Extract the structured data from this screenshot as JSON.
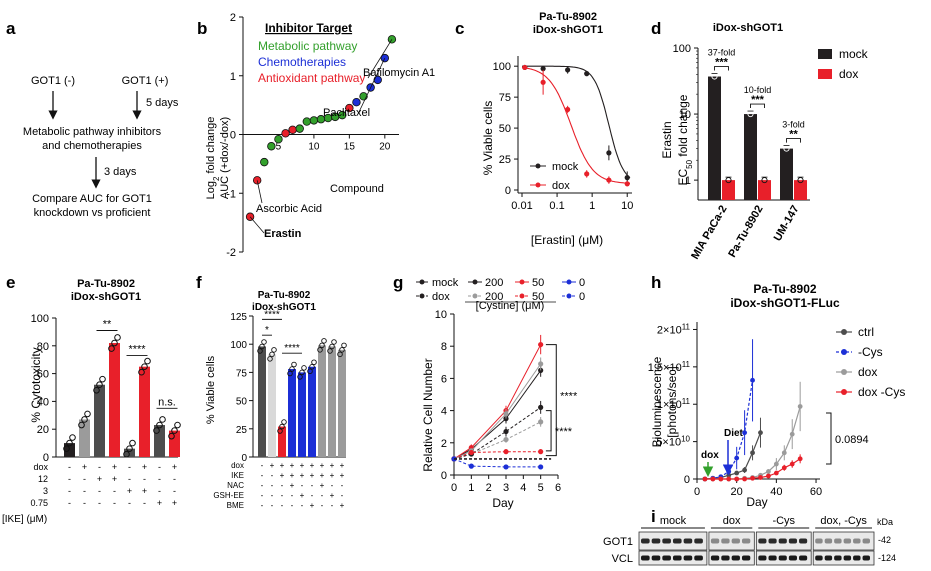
{
  "panel_letters": {
    "a": "a",
    "b": "b",
    "c": "c",
    "d": "d",
    "e": "e",
    "f": "f",
    "g": "g",
    "h": "h",
    "i": "i"
  },
  "colors": {
    "black": "#231f20",
    "grey": "#9b9b9b",
    "red": "#e8202a",
    "blue": "#1c2fd6",
    "green": "#33a02c",
    "darkgrey": "#4d4d4d"
  },
  "panel_a": {
    "got1_minus": "GOT1 (-)",
    "got1_plus": "GOT1 (+)",
    "days5": "5 days",
    "line1": "Metabolic pathway inhibitors",
    "line2": "and chemotherapies",
    "days3": "3 days",
    "line3": "Compare AUC for GOT1",
    "line4": "knockdown vs proficient"
  },
  "chart_data": [
    {
      "panel": "b",
      "type": "scatter",
      "legend_title": "Inhibitor Target",
      "legend": [
        {
          "name": "Metabolic pathway",
          "color": "#33a02c"
        },
        {
          "name": "Chemotherapies",
          "color": "#1c2fd6"
        },
        {
          "name": "Antioxidant pathway",
          "color": "#e8202a"
        }
      ],
      "ylabel_line1": "Log",
      "ylabel_sub": "2",
      "ylabel_rest": " fold change",
      "ylabel_line2": "AUC (+dox/-dox)",
      "xlabel": "Compound",
      "xticks": [
        "5",
        "10",
        "15",
        "20"
      ],
      "yticks": [
        "-2",
        "-1",
        "0",
        "1",
        "2"
      ],
      "xlim": [
        0,
        22
      ],
      "ylim": [
        -2,
        2
      ],
      "points": [
        {
          "x": 1,
          "y": -1.4,
          "c": "red"
        },
        {
          "x": 2,
          "y": -0.78,
          "c": "red"
        },
        {
          "x": 3,
          "y": -0.47,
          "c": "green"
        },
        {
          "x": 4,
          "y": -0.2,
          "c": "green"
        },
        {
          "x": 5,
          "y": -0.08,
          "c": "green"
        },
        {
          "x": 6,
          "y": 0.02,
          "c": "red"
        },
        {
          "x": 7,
          "y": 0.08,
          "c": "red"
        },
        {
          "x": 8,
          "y": 0.1,
          "c": "green"
        },
        {
          "x": 9,
          "y": 0.22,
          "c": "green"
        },
        {
          "x": 10,
          "y": 0.24,
          "c": "green"
        },
        {
          "x": 11,
          "y": 0.26,
          "c": "green"
        },
        {
          "x": 12,
          "y": 0.28,
          "c": "green"
        },
        {
          "x": 13,
          "y": 0.3,
          "c": "green"
        },
        {
          "x": 14,
          "y": 0.33,
          "c": "green"
        },
        {
          "x": 15,
          "y": 0.45,
          "c": "red"
        },
        {
          "x": 16,
          "y": 0.55,
          "c": "blue"
        },
        {
          "x": 17,
          "y": 0.65,
          "c": "green"
        },
        {
          "x": 18,
          "y": 0.8,
          "c": "blue"
        },
        {
          "x": 19,
          "y": 0.93,
          "c": "blue"
        },
        {
          "x": 20,
          "y": 1.3,
          "c": "blue"
        },
        {
          "x": 21,
          "y": 1.62,
          "c": "green"
        }
      ],
      "annotations": {
        "bafilomycin": "Bafilomycin A1",
        "paclitaxel": "Paclitaxel",
        "ascorbic": "Ascorbic Acid",
        "erastin": "Erastin"
      }
    },
    {
      "panel": "c",
      "type": "line",
      "title_line1": "Pa-Tu-8902",
      "title_line2": "iDox-shGOT1",
      "ylabel": "% Viable cells",
      "xlabel": "[Erastin] (μM)",
      "xticks": [
        "0.01",
        "0.1",
        "1",
        "10"
      ],
      "yticks": [
        "0",
        "25",
        "50",
        "75",
        "100"
      ],
      "xlim": [
        0.01,
        12
      ],
      "ylim": [
        0,
        105
      ],
      "series": [
        {
          "name": "mock",
          "color": "#231f20",
          "x": [
            0.012,
            0.04,
            0.2,
            0.7,
            3,
            10
          ],
          "y": [
            99,
            98,
            97,
            94,
            30,
            10
          ],
          "err": [
            2,
            2,
            3,
            2,
            6,
            5
          ],
          "fit": {
            "top": 100,
            "bottom": 5,
            "ec50": 3.0,
            "hill": 2.1
          }
        },
        {
          "name": "dox",
          "color": "#e8202a",
          "x": [
            0.012,
            0.04,
            0.2,
            0.7,
            3,
            10
          ],
          "y": [
            99,
            87,
            65,
            13,
            8,
            5
          ],
          "err": [
            2,
            10,
            3,
            3,
            3,
            2
          ],
          "fit": {
            "top": 100,
            "bottom": 5,
            "ec50": 0.25,
            "hill": 1.4
          }
        }
      ]
    },
    {
      "panel": "d",
      "type": "bar",
      "title": "iDox-shGOT1",
      "ylabel_line1": "Erastin",
      "ylabel_line2_main": "EC",
      "ylabel_line2_sub": "50",
      "ylabel_line2_rest": " fold change",
      "categories": [
        "MIA PaCa-2",
        "Pa-Tu-8902",
        "UM-147"
      ],
      "yticks": [
        "1",
        "10",
        "100"
      ],
      "ylim": [
        0.5,
        100
      ],
      "scale": "log",
      "series": [
        {
          "name": "mock",
          "color": "#231f20",
          "values": [
            37,
            10,
            3
          ]
        },
        {
          "name": "dox",
          "color": "#e8202a",
          "values": [
            1,
            1,
            1
          ]
        }
      ],
      "folds": [
        "37-fold",
        "10-fold",
        "3-fold"
      ],
      "sig": [
        "***",
        "***",
        "**"
      ]
    },
    {
      "panel": "e",
      "type": "bar",
      "title_line1": "Pa-Tu-8902",
      "title_line2": "iDox-shGOT1",
      "ylabel": "% Cytotoxicity",
      "yticks": [
        "0",
        "20",
        "40",
        "60",
        "80",
        "100"
      ],
      "ylim": [
        0,
        100
      ],
      "values": [
        10,
        27,
        52,
        82,
        6,
        65,
        23,
        19
      ],
      "colors": [
        "#231f20",
        "#9b9b9b",
        "#4d4d4d",
        "#e8202a",
        "#4d4d4d",
        "#e8202a",
        "#4d4d4d",
        "#e8202a"
      ],
      "sig": [
        "**",
        "****",
        "n.s."
      ],
      "conditions": {
        "labels": [
          "dox",
          "12",
          "3",
          "0.75"
        ],
        "group_label": "[IKE] (μM)",
        "rows": [
          [
            "-",
            "+",
            "-",
            "+",
            "-",
            "+",
            "-",
            "+"
          ],
          [
            "-",
            "-",
            "+",
            "+",
            "-",
            "-",
            "-",
            "-"
          ],
          [
            "-",
            "-",
            "-",
            "-",
            "+",
            "+",
            "-",
            "-"
          ],
          [
            "-",
            "-",
            "-",
            "-",
            "-",
            "-",
            "+",
            "+"
          ]
        ]
      }
    },
    {
      "panel": "f",
      "type": "bar",
      "title_line1": "Pa-Tu-8902",
      "title_line2": "iDox-shGOT1",
      "ylabel": "% Viable cells",
      "yticks": [
        "0",
        "25",
        "50",
        "75",
        "100",
        "125"
      ],
      "ylim": [
        0,
        125
      ],
      "values": [
        98,
        91,
        27,
        78,
        75,
        80,
        99,
        98,
        95
      ],
      "colors": [
        "#4d4d4d",
        "#d9d9d9",
        "#e8202a",
        "#1c2fd6",
        "#1c2fd6",
        "#1c2fd6",
        "#9b9b9b",
        "#9b9b9b",
        "#9b9b9b"
      ],
      "sig": [
        "*",
        "****",
        "****"
      ],
      "conditions": {
        "labels": [
          "dox",
          "IKE",
          "NAC",
          "GSH-EE",
          "BME"
        ],
        "rows": [
          [
            "-",
            "+",
            "+",
            "+",
            "+",
            "+",
            "+",
            "+",
            "+"
          ],
          [
            "-",
            "-",
            "+",
            "+",
            "+",
            "+",
            "+",
            "+",
            "+"
          ],
          [
            "-",
            "-",
            "-",
            "+",
            "-",
            "-",
            "+",
            "-",
            "-"
          ],
          [
            "-",
            "-",
            "-",
            "-",
            "+",
            "-",
            "-",
            "+",
            "-"
          ],
          [
            "-",
            "-",
            "-",
            "-",
            "-",
            "+",
            "-",
            "-",
            "+"
          ]
        ]
      }
    },
    {
      "panel": "g",
      "type": "line",
      "legend_rows": [
        {
          "label": "mock",
          "items": [
            {
              "color": "#231f20",
              "text": "200"
            },
            {
              "color": "#e8202a",
              "text": "50"
            },
            {
              "color": "#1c2fd6",
              "text": "0"
            }
          ],
          "lead": "#231f20",
          "dash": false
        },
        {
          "label": "dox",
          "items": [
            {
              "color": "#9b9b9b",
              "text": "200"
            },
            {
              "color": "#e8202a",
              "text": "50"
            },
            {
              "color": "#1c2fd6",
              "text": "0"
            }
          ],
          "lead": "#231f20",
          "dash": true
        }
      ],
      "legend_unit": "[Cystine] (μM)",
      "ylabel": "Relative Cell Number",
      "xlabel": "Day",
      "xticks": [
        "0",
        "1",
        "2",
        "3",
        "4",
        "5",
        "6"
      ],
      "yticks": [
        "0",
        "2",
        "4",
        "6",
        "8",
        "10"
      ],
      "xlim": [
        0,
        6
      ],
      "ylim": [
        0,
        10
      ],
      "series": [
        {
          "name": "mock 200",
          "color": "#231f20",
          "dash": false,
          "x": [
            0,
            1,
            3,
            5
          ],
          "y": [
            1,
            1.6,
            3.5,
            6.5
          ],
          "err": [
            0,
            0.2,
            0.3,
            0.4
          ]
        },
        {
          "name": "mock 50",
          "color": "#e8202a",
          "dash": false,
          "x": [
            0,
            1,
            3,
            5
          ],
          "y": [
            1,
            1.7,
            4.0,
            8.1
          ],
          "err": [
            0,
            0.2,
            0.3,
            0.6
          ]
        },
        {
          "name": "dox 200",
          "color": "#9b9b9b",
          "dash": true,
          "x": [
            0,
            1,
            3,
            5
          ],
          "y": [
            1,
            1.3,
            2.2,
            3.3
          ],
          "err": [
            0,
            0.1,
            0.2,
            0.3
          ]
        },
        {
          "name": "dox 200b",
          "color": "#231f20",
          "dash": true,
          "x": [
            0,
            1,
            3,
            5
          ],
          "y": [
            1,
            1.3,
            2.7,
            4.2
          ],
          "err": [
            0,
            0.1,
            0.3,
            0.4
          ]
        },
        {
          "name": "mock 50b",
          "color": "#9b9b9b",
          "dash": false,
          "x": [
            0,
            1,
            3,
            5
          ],
          "y": [
            1,
            1.5,
            3.8,
            6.9
          ],
          "err": [
            0,
            0.15,
            0.3,
            0.4
          ]
        },
        {
          "name": "dox 50",
          "color": "#e8202a",
          "dash": true,
          "x": [
            0,
            1,
            3,
            5
          ],
          "y": [
            1,
            1.4,
            1.45,
            1.45
          ],
          "err": [
            0,
            0.1,
            0.1,
            0.1
          ]
        },
        {
          "name": "0",
          "color": "#1c2fd6",
          "dash": true,
          "x": [
            0,
            1,
            3,
            5
          ],
          "y": [
            1,
            0.55,
            0.5,
            0.5
          ],
          "err": [
            0,
            0.05,
            0.05,
            0.05
          ]
        },
        {
          "name": "zero-ref",
          "color": "#231f20",
          "dash": true,
          "x": [
            0,
            5.6
          ],
          "y": [
            1,
            1
          ],
          "err": [
            0,
            0
          ]
        }
      ],
      "sig": [
        "****",
        "****"
      ]
    },
    {
      "panel": "h",
      "type": "line",
      "title_line1": "Pa-Tu-8902",
      "title_line2": "iDox-shGOT1-FLuc",
      "ylabel_line1": "Bioluminescence",
      "ylabel_line2": "[photons/sec]",
      "xlabel": "Day",
      "xticks": [
        "0",
        "20",
        "40",
        "60"
      ],
      "yticks": [
        "0",
        "5×10",
        "1×10",
        "1.5×10",
        "2×10"
      ],
      "ytick_exp": [
        "",
        "10",
        "11",
        "11",
        "11"
      ],
      "xlim": [
        0,
        62
      ],
      "ylim": [
        0,
        210000000000.0
      ],
      "series": [
        {
          "name": "ctrl",
          "color": "#4d4d4d",
          "dash": false,
          "x": [
            4,
            8,
            12,
            16,
            20,
            24,
            28,
            32
          ],
          "y": [
            0,
            1000000000.0,
            2000000000.0,
            5000000000.0,
            8000000000.0,
            12000000000.0,
            35000000000.0,
            62000000000.0
          ],
          "err": [
            0,
            0,
            0,
            0,
            2000000000.0,
            4000000000.0,
            10000000000.0,
            20000000000.0
          ]
        },
        {
          "name": "-Cys",
          "color": "#1c2fd6",
          "dash": true,
          "x": [
            4,
            8,
            12,
            16,
            20,
            24,
            28
          ],
          "y": [
            0,
            1000000000.0,
            3000000000.0,
            10000000000.0,
            28000000000.0,
            62000000000.0,
            132000000000.0
          ],
          "err": [
            0,
            0,
            0,
            5000000000.0,
            15000000000.0,
            30000000000.0,
            55000000000.0
          ]
        },
        {
          "name": "dox",
          "color": "#9b9b9b",
          "dash": false,
          "x": [
            4,
            8,
            12,
            16,
            20,
            24,
            28,
            32,
            36,
            40,
            44,
            48,
            52
          ],
          "y": [
            0,
            0,
            0,
            0,
            0,
            1000000000.0,
            2000000000.0,
            5000000000.0,
            10000000000.0,
            20000000000.0,
            35000000000.0,
            60000000000.0,
            97000000000.0
          ],
          "err": [
            0,
            0,
            0,
            0,
            0,
            0,
            0,
            1000000000.0,
            3000000000.0,
            8000000000.0,
            10000000000.0,
            20000000000.0,
            33000000000.0
          ]
        },
        {
          "name": "dox -Cys",
          "color": "#e8202a",
          "dash": false,
          "x": [
            4,
            8,
            12,
            16,
            20,
            24,
            28,
            32,
            36,
            40,
            44,
            48,
            52
          ],
          "y": [
            0,
            0,
            0,
            0,
            0,
            0,
            1000000000.0,
            2000000000.0,
            4000000000.0,
            8000000000.0,
            15000000000.0,
            20000000000.0,
            27000000000.0
          ],
          "err": [
            0,
            0,
            0,
            0,
            0,
            0,
            0,
            0,
            1000000000.0,
            2000000000.0,
            4000000000.0,
            5000000000.0,
            6000000000.0
          ]
        }
      ],
      "annot_dox": "dox",
      "annot_diet": "Diet",
      "pval": "0.0894"
    }
  ],
  "panel_i": {
    "groups": [
      "mock",
      "dox",
      "-Cys",
      "dox, -Cys"
    ],
    "row_labels": [
      "GOT1",
      "VCL"
    ],
    "kda_label": "kDa",
    "kda": [
      "42",
      "124"
    ]
  }
}
